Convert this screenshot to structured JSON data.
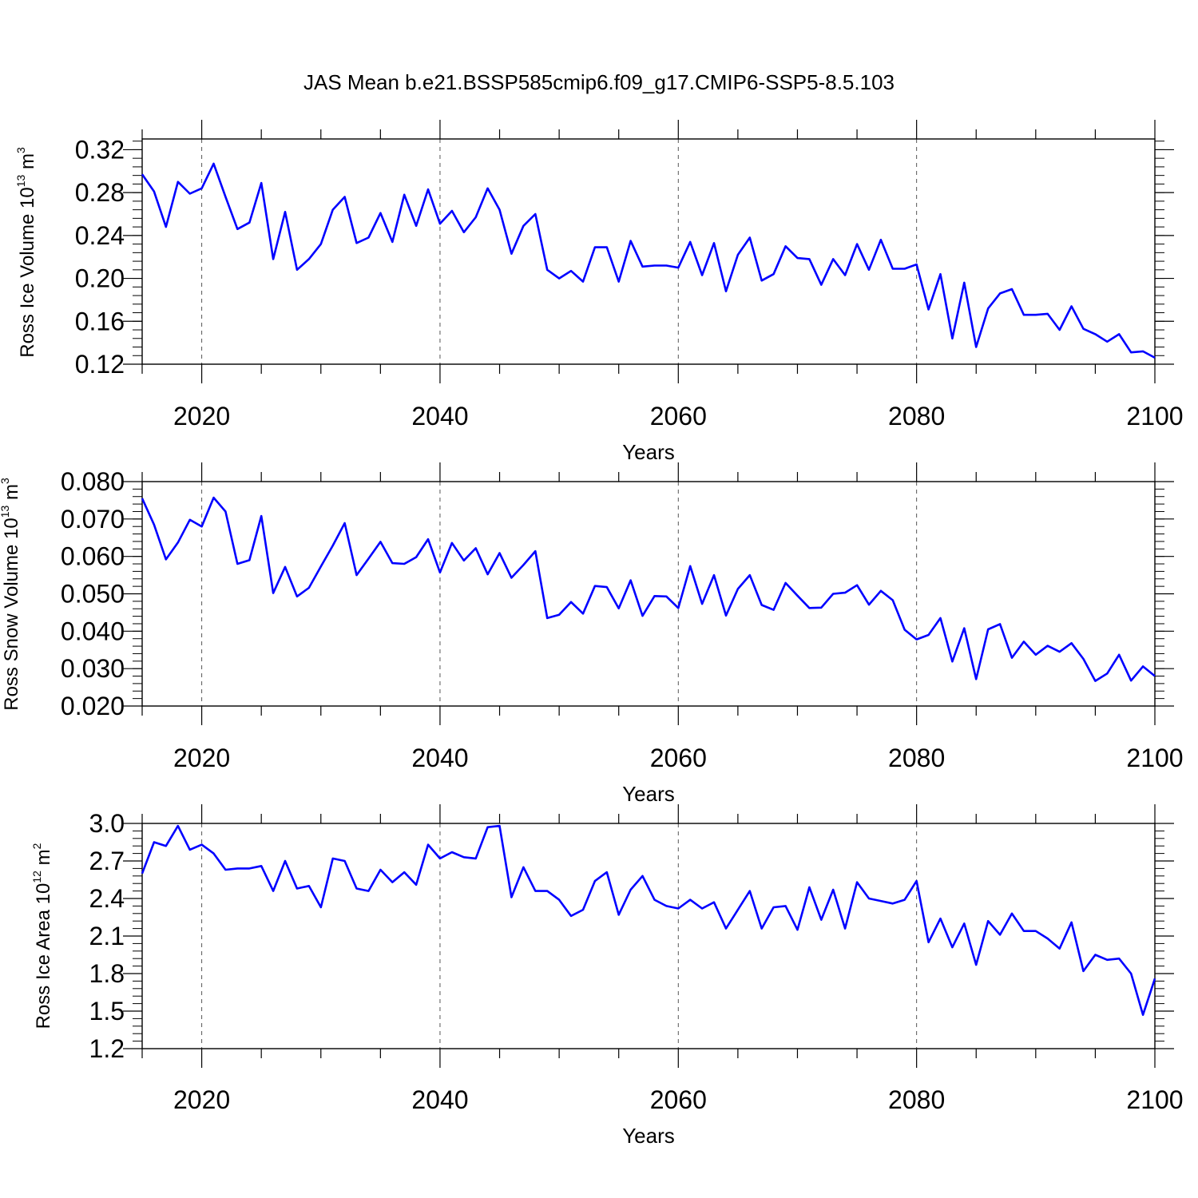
{
  "figure": {
    "title": "JAS Mean b.e21.BSSP585cmip6.f09_g17.CMIP6-SSP5-8.5.103"
  },
  "chart_data": [
    {
      "type": "line",
      "ylabel": "Ross Ice Volume 10",
      "ylabel_exp": "13",
      "ylabel_unit": " m",
      "ylabel_unit_exp": "3",
      "xlabel": "Years",
      "xlim": [
        2015,
        2100
      ],
      "ylim": [
        0.12,
        0.33
      ],
      "yticks": [
        0.12,
        0.16,
        0.2,
        0.24,
        0.28,
        0.32
      ],
      "ytick_labels": [
        "0.12",
        "0.16",
        "0.20",
        "0.24",
        "0.28",
        "0.32"
      ],
      "xticks": [
        2020,
        2040,
        2060,
        2080,
        2100
      ],
      "xtick_labels": [
        "2020",
        "2040",
        "2060",
        "2080",
        "2100"
      ],
      "grid": "dashed vertical at major x ticks",
      "line_color": "#0000ff",
      "x_start": 2015,
      "values": [
        0.297,
        0.281,
        0.248,
        0.29,
        0.279,
        0.284,
        0.307,
        0.276,
        0.246,
        0.252,
        0.289,
        0.218,
        0.262,
        0.208,
        0.218,
        0.232,
        0.264,
        0.276,
        0.233,
        0.238,
        0.261,
        0.234,
        0.278,
        0.249,
        0.283,
        0.251,
        0.263,
        0.243,
        0.257,
        0.284,
        0.264,
        0.223,
        0.249,
        0.26,
        0.208,
        0.2,
        0.207,
        0.197,
        0.229,
        0.229,
        0.197,
        0.235,
        0.211,
        0.212,
        0.212,
        0.21,
        0.234,
        0.203,
        0.233,
        0.188,
        0.222,
        0.238,
        0.198,
        0.204,
        0.23,
        0.219,
        0.218,
        0.194,
        0.218,
        0.203,
        0.232,
        0.208,
        0.236,
        0.209,
        0.209,
        0.213,
        0.171,
        0.204,
        0.144,
        0.196,
        0.136,
        0.172,
        0.186,
        0.19,
        0.166,
        0.166,
        0.167,
        0.152,
        0.174,
        0.153,
        0.148,
        0.141,
        0.148,
        0.131,
        0.132,
        0.126
      ]
    },
    {
      "type": "line",
      "ylabel": "Ross Snow Volume 10",
      "ylabel_exp": "13",
      "ylabel_unit": " m",
      "ylabel_unit_exp": "3",
      "xlabel": "Years",
      "xlim": [
        2015,
        2100
      ],
      "ylim": [
        0.02,
        0.08
      ],
      "yticks": [
        0.02,
        0.03,
        0.04,
        0.05,
        0.06,
        0.07,
        0.08
      ],
      "ytick_labels": [
        "0.020",
        "0.030",
        "0.040",
        "0.050",
        "0.060",
        "0.070",
        "0.080"
      ],
      "xticks": [
        2020,
        2040,
        2060,
        2080,
        2100
      ],
      "xtick_labels": [
        "2020",
        "2040",
        "2060",
        "2080",
        "2100"
      ],
      "grid": "dashed vertical at major x ticks",
      "line_color": "#0000ff",
      "x_start": 2015,
      "values": [
        0.0755,
        0.0685,
        0.0592,
        0.0637,
        0.0698,
        0.068,
        0.0757,
        0.072,
        0.058,
        0.059,
        0.0708,
        0.0502,
        0.0572,
        0.0493,
        0.0516,
        0.0573,
        0.0629,
        0.0689,
        0.055,
        0.0594,
        0.0639,
        0.0582,
        0.058,
        0.0598,
        0.0646,
        0.0557,
        0.0636,
        0.0589,
        0.0622,
        0.0552,
        0.0609,
        0.0543,
        0.0577,
        0.0614,
        0.0435,
        0.0444,
        0.0478,
        0.0447,
        0.0521,
        0.0518,
        0.0461,
        0.0536,
        0.0441,
        0.0494,
        0.0493,
        0.0462,
        0.0574,
        0.0473,
        0.055,
        0.0442,
        0.0513,
        0.055,
        0.047,
        0.0457,
        0.0529,
        0.0495,
        0.0462,
        0.0463,
        0.05,
        0.0503,
        0.0523,
        0.0471,
        0.0508,
        0.0483,
        0.0404,
        0.0378,
        0.039,
        0.0435,
        0.0319,
        0.0408,
        0.0272,
        0.0405,
        0.0419,
        0.0329,
        0.0372,
        0.0337,
        0.0361,
        0.0345,
        0.0368,
        0.0326,
        0.0267,
        0.0287,
        0.0337,
        0.0268,
        0.0306,
        0.028
      ]
    },
    {
      "type": "line",
      "ylabel": "Ross Ice Area 10",
      "ylabel_exp": "12",
      "ylabel_unit": " m",
      "ylabel_unit_exp": "2",
      "xlabel": "Years",
      "xlim": [
        2015,
        2100
      ],
      "ylim": [
        1.2,
        3.0
      ],
      "yticks": [
        1.2,
        1.5,
        1.8,
        2.1,
        2.4,
        2.7,
        3.0
      ],
      "ytick_labels": [
        "1.2",
        "1.5",
        "1.8",
        "2.1",
        "2.4",
        "2.7",
        "3.0"
      ],
      "xticks": [
        2020,
        2040,
        2060,
        2080,
        2100
      ],
      "xtick_labels": [
        "2020",
        "2040",
        "2060",
        "2080",
        "2100"
      ],
      "grid": "dashed vertical at major x ticks",
      "line_color": "#0000ff",
      "x_start": 2015,
      "values": [
        2.6,
        2.85,
        2.82,
        2.98,
        2.79,
        2.83,
        2.76,
        2.63,
        2.64,
        2.64,
        2.66,
        2.46,
        2.7,
        2.48,
        2.5,
        2.33,
        2.72,
        2.7,
        2.48,
        2.46,
        2.63,
        2.53,
        2.61,
        2.51,
        2.83,
        2.72,
        2.77,
        2.73,
        2.72,
        2.97,
        2.98,
        2.41,
        2.65,
        2.46,
        2.46,
        2.39,
        2.26,
        2.31,
        2.54,
        2.61,
        2.27,
        2.47,
        2.58,
        2.39,
        2.34,
        2.32,
        2.39,
        2.32,
        2.37,
        2.16,
        2.31,
        2.46,
        2.16,
        2.33,
        2.34,
        2.15,
        2.49,
        2.23,
        2.47,
        2.16,
        2.53,
        2.4,
        2.38,
        2.36,
        2.39,
        2.54,
        2.05,
        2.24,
        2.01,
        2.2,
        1.87,
        2.22,
        2.11,
        2.28,
        2.14,
        2.14,
        2.08,
        2.0,
        2.21,
        1.82,
        1.95,
        1.91,
        1.92,
        1.8,
        1.47,
        1.76
      ]
    }
  ]
}
